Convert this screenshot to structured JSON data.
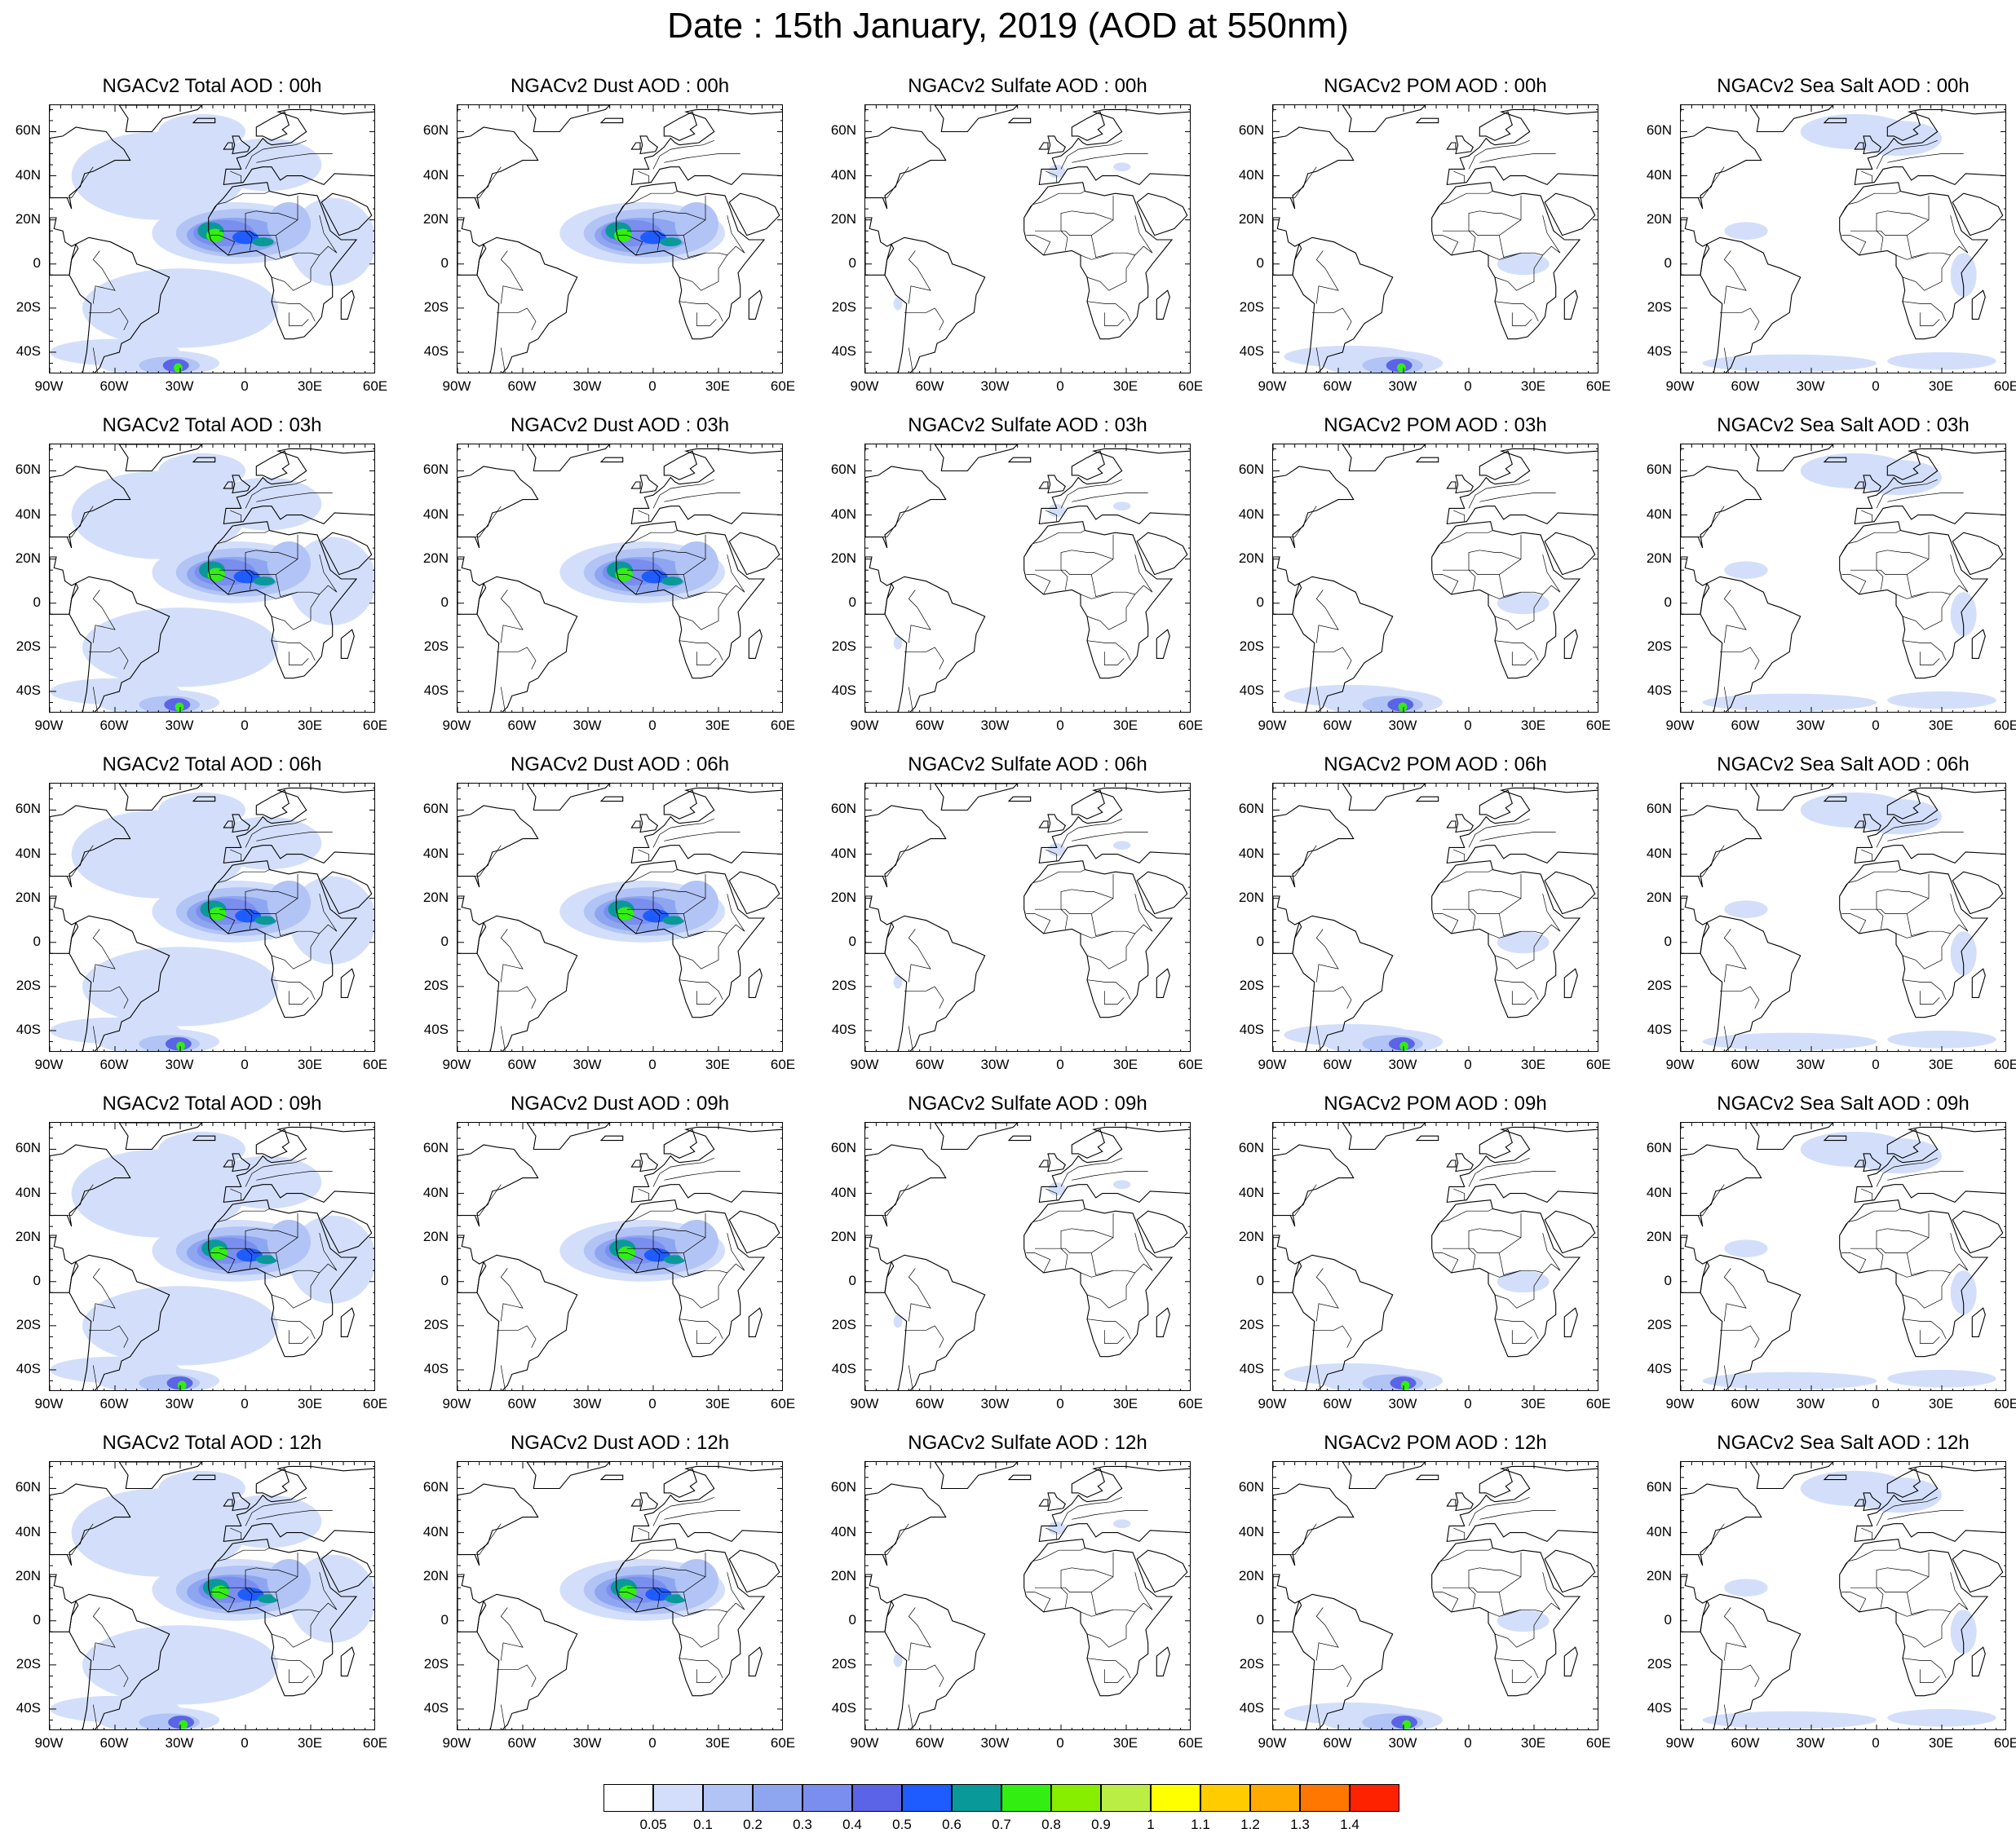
{
  "title": "Date : 15th January, 2019 (AOD at 550nm)",
  "rows": [
    [
      "NGACv2 Total AOD : 00h",
      "NGACv2 Dust AOD : 00h",
      "NGACv2 Sulfate AOD : 00h",
      "NGACv2 POM AOD : 00h",
      "NGACv2 Sea Salt AOD : 00h"
    ],
    [
      "NGACv2 Total AOD : 03h",
      "NGACv2 Dust AOD : 03h",
      "NGACv2 Sulfate AOD : 03h",
      "NGACv2 POM AOD : 03h",
      "NGACv2 Sea Salt AOD : 03h"
    ],
    [
      "NGACv2 Total AOD : 06h",
      "NGACv2 Dust AOD : 06h",
      "NGACv2 Sulfate AOD : 06h",
      "NGACv2 POM AOD : 06h",
      "NGACv2 Sea Salt AOD : 06h"
    ],
    [
      "NGACv2 Total AOD : 09h",
      "NGACv2 Dust AOD : 09h",
      "NGACv2 Sulfate AOD : 09h",
      "NGACv2 POM AOD : 09h",
      "NGACv2 Sea Salt  AOD : 09h"
    ],
    [
      "NGACv2 Total AOD  : 12h",
      "NGACv2 Dust AOD : 12h",
      "NGACv2 Sulfate AOD : 12h",
      "NGACv2 POM  AOD : 12h",
      "NGACv2 Sea Salt  AOD : 12h"
    ]
  ],
  "axes": {
    "lat_labels": [
      "60N",
      "40N",
      "20N",
      "0",
      "20S",
      "40S"
    ],
    "lon_labels": [
      "90W",
      "60W",
      "30W",
      "0",
      "30E",
      "60E"
    ]
  },
  "colorbar": {
    "colors": [
      "#ffffff",
      "#d3dffa",
      "#b2c4f5",
      "#8da6ef",
      "#7a8ef0",
      "#5b63e6",
      "#1f5cff",
      "#0a9999",
      "#33ee11",
      "#88ee00",
      "#bbee44",
      "#ffff00",
      "#ffcc00",
      "#ffaa00",
      "#ff7700",
      "#ff2200"
    ],
    "labels": [
      "0.05",
      "0.1",
      "0.2",
      "0.3",
      "0.4",
      "0.5",
      "0.6",
      "0.7",
      "0.8",
      "0.9",
      "1",
      "1.1",
      "1.2",
      "1.3",
      "1.4"
    ]
  }
}
